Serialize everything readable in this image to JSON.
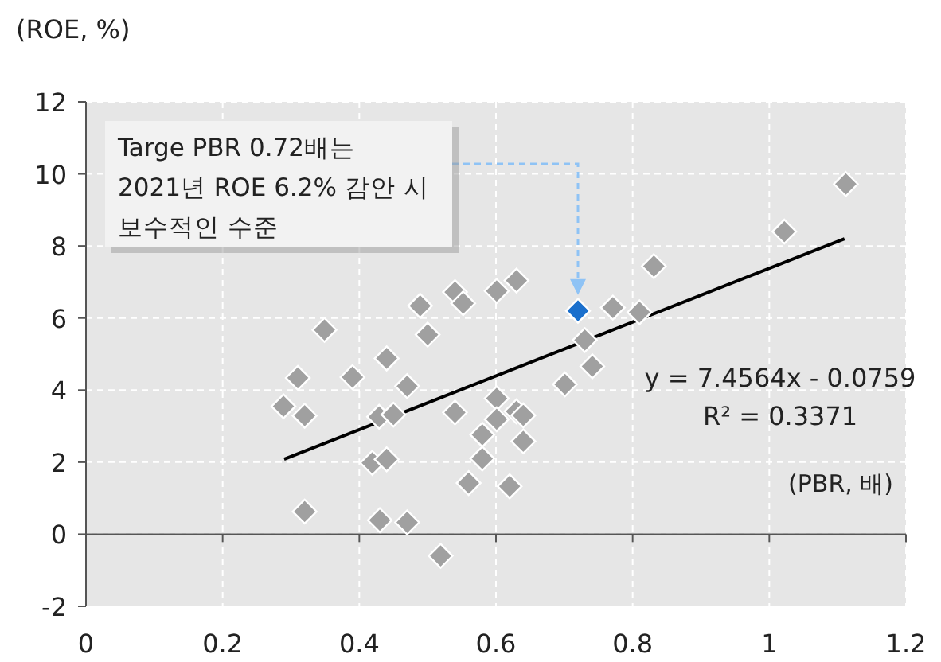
{
  "chart_data": {
    "type": "scatter",
    "xlabel": "(PBR, 배)",
    "ylabel": "(ROE, %)",
    "xlim": [
      0,
      1.2
    ],
    "ylim": [
      -2,
      12
    ],
    "xticks": [
      0,
      0.2,
      0.4,
      0.6,
      0.8,
      1,
      1.2
    ],
    "yticks": [
      -2,
      0,
      2,
      4,
      6,
      8,
      10,
      12
    ],
    "grid": true,
    "marker": "diamond",
    "series": [
      {
        "color": "#a0a0a0",
        "x": [
          0.349,
          0.31,
          0.289,
          0.32,
          0.39,
          0.44,
          0.47,
          0.429,
          0.45,
          0.419,
          0.44,
          0.32,
          0.43,
          0.47,
          0.519,
          0.489,
          0.5,
          0.54,
          0.552,
          0.601,
          0.63,
          0.54,
          0.601,
          0.601,
          0.63,
          0.64,
          0.58,
          0.64,
          0.58,
          0.56,
          0.62,
          0.701,
          0.73,
          0.741,
          0.831,
          0.771,
          0.81,
          1.022,
          1.112
        ],
        "values": [
          5.67,
          4.34,
          3.55,
          3.29,
          4.36,
          4.88,
          4.11,
          3.26,
          3.32,
          1.98,
          2.08,
          0.63,
          0.39,
          0.33,
          -0.6,
          6.34,
          5.54,
          6.72,
          6.41,
          6.75,
          7.04,
          3.38,
          3.77,
          3.19,
          3.41,
          3.3,
          2.76,
          2.58,
          2.1,
          1.42,
          1.33,
          4.16,
          5.39,
          4.66,
          7.44,
          6.29,
          6.16,
          8.4,
          9.72
        ]
      },
      {
        "color": "#1a6fcc",
        "x": [
          0.72
        ],
        "values": [
          6.2
        ]
      },
      {
        "type": "line",
        "marker": "none",
        "color": "#000000",
        "x": [
          0.29,
          1.11
        ],
        "values": [
          2.08,
          8.2
        ]
      }
    ],
    "annotations": [
      "Targe PBR 0.72배는\n2021년 ROE 6.2% 감안 시\n보수적인 수준",
      "y = 7.4564x - 0.0759",
      "R² = 0.3371"
    ]
  }
}
